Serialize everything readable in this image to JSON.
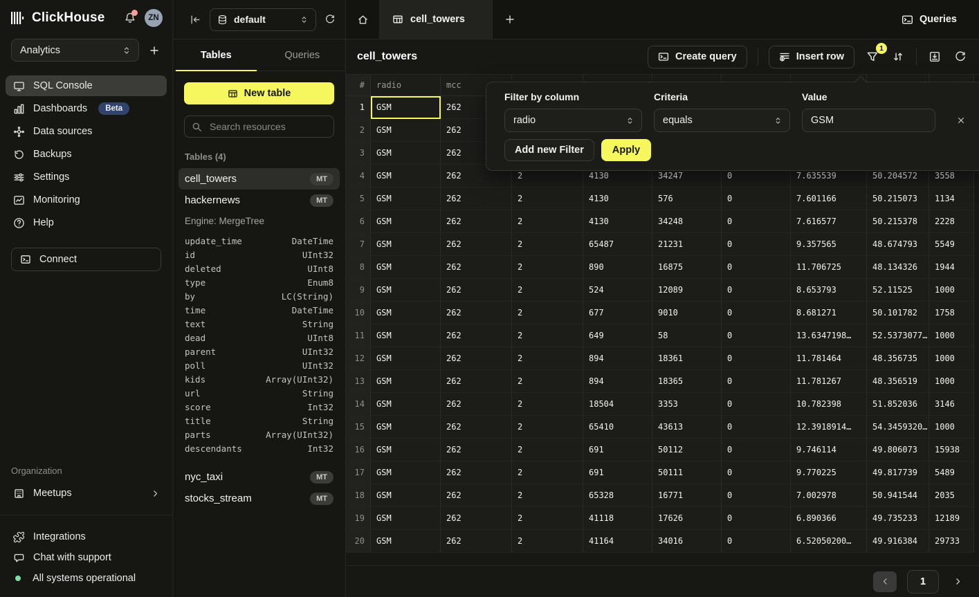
{
  "brand": {
    "name": "ClickHouse",
    "avatar_initials": "ZN"
  },
  "workspace": {
    "name": "Analytics"
  },
  "sidebar": {
    "items": [
      {
        "label": "SQL Console",
        "active": true
      },
      {
        "label": "Dashboards",
        "badge": "Beta"
      },
      {
        "label": "Data sources"
      },
      {
        "label": "Backups"
      },
      {
        "label": "Settings"
      },
      {
        "label": "Monitoring"
      },
      {
        "label": "Help"
      }
    ],
    "connect_label": "Connect",
    "organization_label": "Organization",
    "meetups_label": "Meetups",
    "footer_items": [
      {
        "label": "Integrations"
      },
      {
        "label": "Chat with support"
      },
      {
        "label": "All systems operational"
      }
    ]
  },
  "explorer": {
    "database": "default",
    "tabs": [
      {
        "label": "Tables",
        "active": true
      },
      {
        "label": "Queries",
        "active": false
      }
    ],
    "new_table_label": "New table",
    "search_placeholder": "Search resources",
    "section_label": "Tables (4)",
    "tables": [
      {
        "name": "cell_towers",
        "badge": "MT",
        "selected": true
      },
      {
        "name": "hackernews",
        "badge": "MT",
        "selected": false
      },
      {
        "name": "nyc_taxi",
        "badge": "MT",
        "selected": false
      },
      {
        "name": "stocks_stream",
        "badge": "MT",
        "selected": false
      }
    ],
    "engine_label": "Engine: MergeTree",
    "schema": [
      [
        "update_time",
        "DateTime"
      ],
      [
        "id",
        "UInt32"
      ],
      [
        "deleted",
        "UInt8"
      ],
      [
        "type",
        "Enum8"
      ],
      [
        "by",
        "LC(String)"
      ],
      [
        "time",
        "DateTime"
      ],
      [
        "text",
        "String"
      ],
      [
        "dead",
        "UInt8"
      ],
      [
        "parent",
        "UInt32"
      ],
      [
        "poll",
        "UInt32"
      ],
      [
        "kids",
        "Array(UInt32)"
      ],
      [
        "url",
        "String"
      ],
      [
        "score",
        "Int32"
      ],
      [
        "title",
        "String"
      ],
      [
        "parts",
        "Array(UInt32)"
      ],
      [
        "descendants",
        "Int32"
      ]
    ]
  },
  "main": {
    "tabs": [
      {
        "label": "cell_towers",
        "active": true
      }
    ],
    "queries_label": "Queries",
    "title": "cell_towers",
    "toolbar": {
      "create_query": "Create query",
      "insert_row": "Insert row",
      "filter_count": "1"
    },
    "table": {
      "headers": [
        "#",
        "radio",
        "mcc",
        "",
        "",
        "",
        "",
        "",
        "",
        ""
      ],
      "selection": {
        "row": 1,
        "column": "radio"
      },
      "rows": [
        [
          "GSM",
          "262",
          "",
          "",
          "",
          "",
          "",
          "",
          ""
        ],
        [
          "GSM",
          "262",
          "",
          "",
          "",
          "",
          "",
          "",
          ""
        ],
        [
          "GSM",
          "262",
          "",
          "",
          "",
          "",
          "",
          "",
          ""
        ],
        [
          "GSM",
          "262",
          "2",
          "4130",
          "34247",
          "0",
          "7.635539",
          "50.204572",
          "3558"
        ],
        [
          "GSM",
          "262",
          "2",
          "4130",
          "576",
          "0",
          "7.601166",
          "50.215073",
          "1134"
        ],
        [
          "GSM",
          "262",
          "2",
          "4130",
          "34248",
          "0",
          "7.616577",
          "50.215378",
          "2228"
        ],
        [
          "GSM",
          "262",
          "2",
          "65487",
          "21231",
          "0",
          "9.357565",
          "48.674793",
          "5549"
        ],
        [
          "GSM",
          "262",
          "2",
          "890",
          "16875",
          "0",
          "11.706725",
          "48.134326",
          "1944"
        ],
        [
          "GSM",
          "262",
          "2",
          "524",
          "12089",
          "0",
          "8.653793",
          "52.11525",
          "1000"
        ],
        [
          "GSM",
          "262",
          "2",
          "677",
          "9010",
          "0",
          "8.681271",
          "50.101782",
          "1758"
        ],
        [
          "GSM",
          "262",
          "2",
          "649",
          "58",
          "0",
          "13.6347198…",
          "52.5373077…",
          "1000"
        ],
        [
          "GSM",
          "262",
          "2",
          "894",
          "18361",
          "0",
          "11.781464",
          "48.356735",
          "1000"
        ],
        [
          "GSM",
          "262",
          "2",
          "894",
          "18365",
          "0",
          "11.781267",
          "48.356519",
          "1000"
        ],
        [
          "GSM",
          "262",
          "2",
          "18504",
          "3353",
          "0",
          "10.782398",
          "51.852036",
          "3146"
        ],
        [
          "GSM",
          "262",
          "2",
          "65410",
          "43613",
          "0",
          "12.3918914…",
          "54.3459320…",
          "1000"
        ],
        [
          "GSM",
          "262",
          "2",
          "691",
          "50112",
          "0",
          "9.746114",
          "49.806073",
          "15938"
        ],
        [
          "GSM",
          "262",
          "2",
          "691",
          "50111",
          "0",
          "9.770225",
          "49.817739",
          "5489"
        ],
        [
          "GSM",
          "262",
          "2",
          "65328",
          "16771",
          "0",
          "7.002978",
          "50.941544",
          "2035"
        ],
        [
          "GSM",
          "262",
          "2",
          "41118",
          "17626",
          "0",
          "6.890366",
          "49.735233",
          "12189"
        ],
        [
          "GSM",
          "262",
          "2",
          "41164",
          "34016",
          "0",
          "6.52050200…",
          "49.916384",
          "29733"
        ]
      ]
    },
    "pagination": {
      "page": "1"
    }
  },
  "filter_popup": {
    "column_label": "Filter by column",
    "column_value": "radio",
    "criteria_label": "Criteria",
    "criteria_value": "equals",
    "value_label": "Value",
    "value_input": "GSM",
    "add_filter_label": "Add new Filter",
    "apply_label": "Apply"
  },
  "colors": {
    "accent_yellow": "#f6f75e",
    "beta_badge_blue": "#31436a",
    "status_green": "#7fe0a7",
    "notification_red": "#f59f96"
  }
}
